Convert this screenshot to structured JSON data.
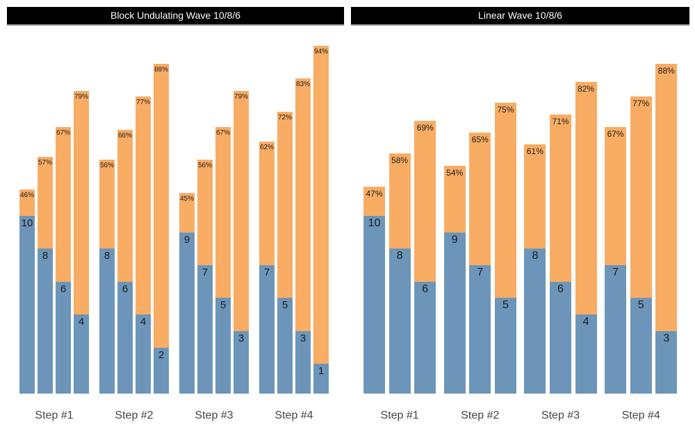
{
  "colors": {
    "reps_bar": "#6C95B9",
    "intensity_bar": "#F8AC64",
    "title_bg": "#000000",
    "title_text": "#FFFFFF",
    "title_underline": "#9A9A9A",
    "bar_label": "#1C1C1C",
    "axis_label": "#444444"
  },
  "chart_data": [
    {
      "type": "bar",
      "subtype": "stacked",
      "title": "Block Undulating Wave 10/8/6",
      "categories": [
        "Step #1",
        "Step #2",
        "Step #3",
        "Step #4"
      ],
      "axes": "hidden",
      "gridlines": "off",
      "legend": "none",
      "series": [
        {
          "name": "reps",
          "segment": "bottom-blue",
          "values": [
            [
              10,
              8,
              6,
              4
            ],
            [
              8,
              6,
              4,
              2
            ],
            [
              9,
              7,
              5,
              3
            ],
            [
              7,
              5,
              3,
              1
            ]
          ]
        },
        {
          "name": "intensity_percent",
          "segment": "top-orange",
          "values": [
            [
              46,
              57,
              67,
              79
            ],
            [
              56,
              66,
              77,
              88
            ],
            [
              45,
              56,
              67,
              79
            ],
            [
              62,
              72,
              83,
              94
            ]
          ]
        }
      ],
      "value_label_format": {
        "reps": "plain number inside blue segment",
        "intensity_percent": "N% at top of orange segment"
      }
    },
    {
      "type": "bar",
      "subtype": "stacked",
      "title": "Linear Wave 10/8/6",
      "categories": [
        "Step #1",
        "Step #2",
        "Step #3",
        "Step #4"
      ],
      "axes": "hidden",
      "gridlines": "off",
      "legend": "none",
      "series": [
        {
          "name": "reps",
          "segment": "bottom-blue",
          "values": [
            [
              10,
              8,
              6
            ],
            [
              9,
              7,
              5
            ],
            [
              8,
              6,
              4
            ],
            [
              7,
              5,
              3
            ]
          ]
        },
        {
          "name": "intensity_percent",
          "segment": "top-orange",
          "values": [
            [
              47,
              58,
              69
            ],
            [
              54,
              65,
              75
            ],
            [
              61,
              71,
              82
            ],
            [
              67,
              77,
              88
            ]
          ]
        }
      ],
      "value_label_format": {
        "reps": "plain number inside blue segment",
        "intensity_percent": "N% at top of orange segment"
      }
    }
  ]
}
